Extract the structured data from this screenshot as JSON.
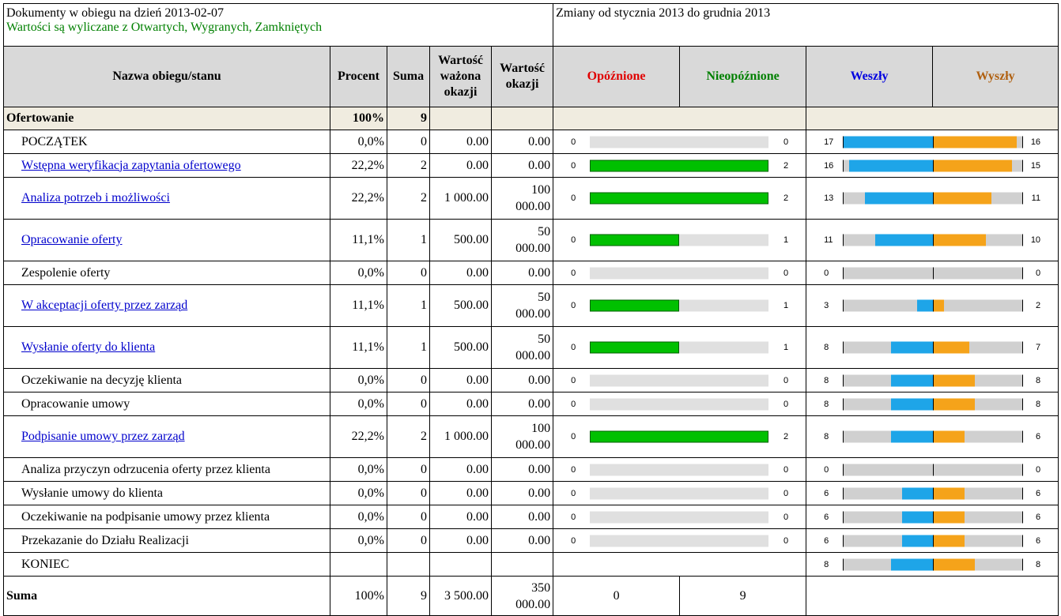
{
  "header": {
    "title": "Dokumenty w obiegu na dzień 2013-02-07",
    "note": "Wartości są wyliczane z Otwartych, Wygranych, Zamkniętych",
    "changes_title": "Zmiany od stycznia 2013 do grudnia 2013"
  },
  "columns": {
    "name": "Nazwa obiegu/stanu",
    "percent": "Procent",
    "sum": "Suma",
    "weighted_value": "Wartość ważona okazji",
    "value": "Wartość okazji",
    "delayed": "Opóźnione",
    "not_delayed": "Nieopóźnione",
    "in": "Weszły",
    "out": "Wyszły"
  },
  "colors": {
    "delayed": "#e00000",
    "not_delayed": "#008000",
    "in": "#0000e0",
    "out": "#b06010",
    "bar_green": "#00c000",
    "bar_in": "#1ea5e8",
    "bar_out": "#f5a31a"
  },
  "group": {
    "name": "Ofertowanie",
    "percent": "100%",
    "sum": "9"
  },
  "rows": [
    {
      "name": "POCZĄTEK",
      "link": false,
      "percent": "0,0%",
      "sum": "0",
      "wv": "0.00",
      "v1": "0.00",
      "v2": "",
      "tall": false,
      "d": "0",
      "nd": "0",
      "frac": 0,
      "in": "17",
      "out": "16",
      "mvIn": 1.0,
      "mvOut": 0.94
    },
    {
      "name": "Wstępna weryfikacja zapytania ofertowego",
      "link": true,
      "percent": "22,2%",
      "sum": "2",
      "wv": "0.00",
      "v1": "0.00",
      "v2": "",
      "tall": false,
      "d": "0",
      "nd": "2",
      "frac": 1,
      "in": "16",
      "out": "15",
      "mvIn": 0.94,
      "mvOut": 0.88
    },
    {
      "name": "Analiza potrzeb i możliwości",
      "link": true,
      "percent": "22,2%",
      "sum": "2",
      "wv": "1 000.00",
      "v1": "100",
      "v2": "000.00",
      "tall": true,
      "d": "0",
      "nd": "2",
      "frac": 1,
      "in": "13",
      "out": "11",
      "mvIn": 0.76,
      "mvOut": 0.65
    },
    {
      "name": "Opracowanie oferty",
      "link": true,
      "percent": "11,1%",
      "sum": "1",
      "wv": "500.00",
      "v1": "50",
      "v2": "000.00",
      "tall": true,
      "d": "0",
      "nd": "1",
      "frac": 0.5,
      "in": "11",
      "out": "10",
      "mvIn": 0.65,
      "mvOut": 0.59
    },
    {
      "name": "Zespolenie oferty",
      "link": false,
      "percent": "0,0%",
      "sum": "0",
      "wv": "0.00",
      "v1": "0.00",
      "v2": "",
      "tall": false,
      "d": "0",
      "nd": "0",
      "frac": 0,
      "in": "0",
      "out": "0",
      "mvIn": 0,
      "mvOut": 0
    },
    {
      "name": "W akceptacji oferty przez zarząd",
      "link": true,
      "percent": "11,1%",
      "sum": "1",
      "wv": "500.00",
      "v1": "50",
      "v2": "000.00",
      "tall": true,
      "d": "0",
      "nd": "1",
      "frac": 0.5,
      "in": "3",
      "out": "2",
      "mvIn": 0.18,
      "mvOut": 0.12
    },
    {
      "name": "Wysłanie oferty do klienta",
      "link": true,
      "percent": "11,1%",
      "sum": "1",
      "wv": "500.00",
      "v1": "50",
      "v2": "000.00",
      "tall": true,
      "d": "0",
      "nd": "1",
      "frac": 0.5,
      "in": "8",
      "out": "7",
      "mvIn": 0.47,
      "mvOut": 0.41
    },
    {
      "name": "Oczekiwanie na decyzję klienta",
      "link": false,
      "percent": "0,0%",
      "sum": "0",
      "wv": "0.00",
      "v1": "0.00",
      "v2": "",
      "tall": false,
      "d": "0",
      "nd": "0",
      "frac": 0,
      "in": "8",
      "out": "8",
      "mvIn": 0.47,
      "mvOut": 0.47
    },
    {
      "name": "Opracowanie umowy",
      "link": false,
      "percent": "0,0%",
      "sum": "0",
      "wv": "0.00",
      "v1": "0.00",
      "v2": "",
      "tall": false,
      "d": "0",
      "nd": "0",
      "frac": 0,
      "in": "8",
      "out": "8",
      "mvIn": 0.47,
      "mvOut": 0.47
    },
    {
      "name": "Podpisanie umowy przez zarząd",
      "link": true,
      "percent": "22,2%",
      "sum": "2",
      "wv": "1 000.00",
      "v1": "100",
      "v2": "000.00",
      "tall": true,
      "d": "0",
      "nd": "2",
      "frac": 1,
      "in": "8",
      "out": "6",
      "mvIn": 0.47,
      "mvOut": 0.35
    },
    {
      "name": "Analiza przyczyn odrzucenia oferty przez klienta",
      "link": false,
      "percent": "0,0%",
      "sum": "0",
      "wv": "0.00",
      "v1": "0.00",
      "v2": "",
      "tall": false,
      "d": "0",
      "nd": "0",
      "frac": 0,
      "in": "0",
      "out": "0",
      "mvIn": 0,
      "mvOut": 0
    },
    {
      "name": "Wysłanie umowy do klienta",
      "link": false,
      "percent": "0,0%",
      "sum": "0",
      "wv": "0.00",
      "v1": "0.00",
      "v2": "",
      "tall": false,
      "d": "0",
      "nd": "0",
      "frac": 0,
      "in": "6",
      "out": "6",
      "mvIn": 0.35,
      "mvOut": 0.35
    },
    {
      "name": "Oczekiwanie na podpisanie umowy przez klienta",
      "link": false,
      "percent": "0,0%",
      "sum": "0",
      "wv": "0.00",
      "v1": "0.00",
      "v2": "",
      "tall": false,
      "d": "0",
      "nd": "0",
      "frac": 0,
      "in": "6",
      "out": "6",
      "mvIn": 0.35,
      "mvOut": 0.35
    },
    {
      "name": "Przekazanie do Działu Realizacji",
      "link": false,
      "percent": "0,0%",
      "sum": "0",
      "wv": "0.00",
      "v1": "0.00",
      "v2": "",
      "tall": false,
      "d": "0",
      "nd": "0",
      "frac": 0,
      "in": "6",
      "out": "6",
      "mvIn": 0.35,
      "mvOut": 0.35
    },
    {
      "name": "KONIEC",
      "link": false,
      "percent": "",
      "sum": "",
      "wv": "",
      "v1": "",
      "v2": "",
      "tall": false,
      "end": true,
      "in": "8",
      "out": "8",
      "mvIn": 0.47,
      "mvOut": 0.47
    }
  ],
  "total": {
    "label": "Suma",
    "percent": "100%",
    "sum": "9",
    "wv": "3 500.00",
    "v1": "350",
    "v2": "000.00",
    "delayed": "0",
    "not_delayed": "9"
  }
}
